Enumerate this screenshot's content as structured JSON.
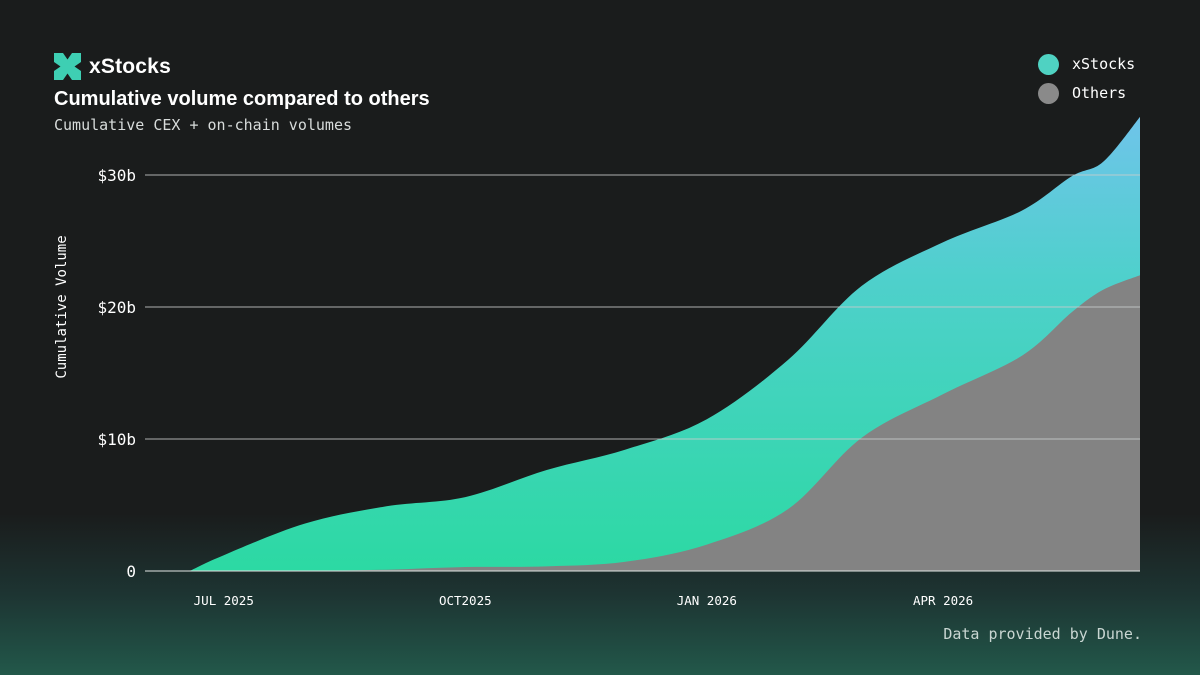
{
  "brand": {
    "name": "xStocks"
  },
  "colors": {
    "background": "#1a1c1c",
    "xstocks_top": "#67c6e2",
    "xstocks_bottom": "#2fd8a6",
    "others": "#838383",
    "grid": "#c9cccc",
    "logo": "#3ecfb3"
  },
  "chart_data": {
    "type": "area",
    "stacked": true,
    "title": "Cumulative volume compared to others",
    "subtitle": "Cumulative CEX + on-chain volumes",
    "ylabel": "Cumulative Volume",
    "xlabel": "",
    "x_ticks": [
      "JUL 2025",
      "OCT2025",
      "JAN 2026",
      "APR 2026"
    ],
    "y_ticks": [
      "0",
      "$10b",
      "$20b",
      "$30b"
    ],
    "y_tick_values": [
      0,
      10,
      20,
      30
    ],
    "ylim": [
      0,
      33
    ],
    "xlim": [
      "2025-06-01",
      "2026-06-15"
    ],
    "grid": true,
    "legend_position": "top-right",
    "x": [
      "2025-06-18",
      "2025-07-01",
      "2025-08-01",
      "2025-09-01",
      "2025-10-01",
      "2025-11-01",
      "2025-12-01",
      "2026-01-01",
      "2026-02-01",
      "2026-03-01",
      "2026-04-01",
      "2026-05-01",
      "2026-05-20",
      "2026-06-01",
      "2026-06-15"
    ],
    "series": [
      {
        "name": "xStocks",
        "values": [
          0.0,
          1.2,
          3.6,
          4.8,
          5.3,
          7.3,
          8.5,
          9.5,
          11.3,
          11.5,
          11.5,
          11.0,
          10.3,
          9.7,
          12.0
        ]
      },
      {
        "name": "Others",
        "values": [
          0.0,
          0.0,
          0.0,
          0.1,
          0.3,
          0.35,
          0.7,
          2.0,
          4.7,
          10.1,
          13.4,
          16.3,
          19.6,
          21.3,
          22.4
        ]
      }
    ]
  },
  "footer": {
    "note": "Data provided by Dune."
  }
}
